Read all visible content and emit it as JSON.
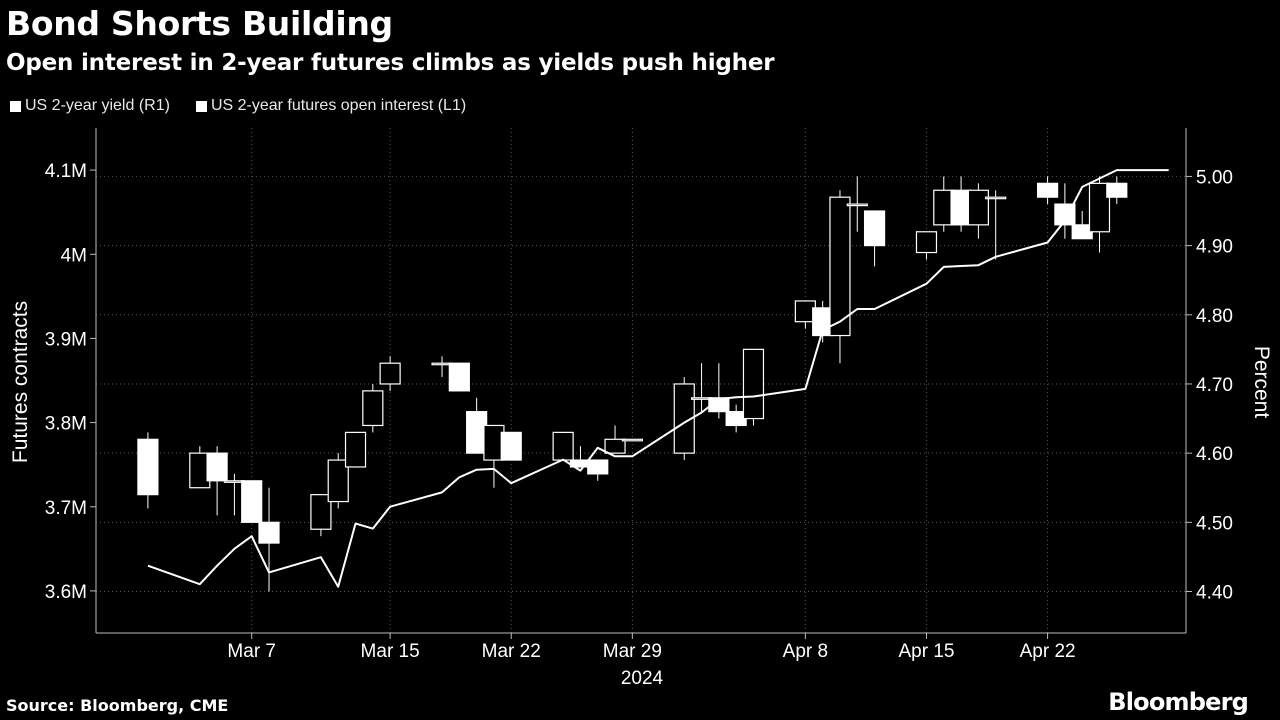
{
  "title": "Bond Shorts Building",
  "subtitle": "Open interest in 2-year futures climbs as yields push higher",
  "source": "Source: Bloomberg, CME",
  "brand": "Bloomberg",
  "colors": {
    "background": "#000000",
    "series": "#ffffff",
    "grid": "#555555"
  },
  "chart_data": {
    "type": "line",
    "legend_position": "top-left",
    "grid": true,
    "legend": [
      {
        "label": "US 2-year yield (R1)",
        "swatch_color": "#ffffff"
      },
      {
        "label": "US 2-year futures open interest (L1)",
        "swatch_color": "#ffffff"
      }
    ],
    "x_tick_labels": [
      "Mar 7",
      "Mar 15",
      "Mar 22",
      "Mar 29",
      "Apr 8",
      "Apr 15",
      "Apr 22"
    ],
    "x_year_label": "2024",
    "left_axis": {
      "label": "Futures contracts",
      "range": [
        3.55,
        4.15
      ],
      "tick_values": [
        3.6,
        3.7,
        3.8,
        3.9,
        4.0,
        4.1
      ],
      "tick_labels": [
        "3.6M",
        "3.7M",
        "3.8M",
        "3.9M",
        "4M",
        "4.1M"
      ]
    },
    "right_axis": {
      "label": "Percent",
      "range": [
        4.34,
        5.07
      ],
      "tick_values": [
        4.4,
        4.5,
        4.6,
        4.7,
        4.8,
        4.9,
        5.0
      ],
      "tick_labels": [
        "4.40",
        "4.50",
        "4.60",
        "4.70",
        "4.80",
        "4.90",
        "5.00"
      ]
    },
    "series": [
      {
        "name": "US 2-year futures open interest (L1)",
        "type": "line",
        "axis": "left",
        "dates": [
          "2024-03-01",
          "2024-03-04",
          "2024-03-05",
          "2024-03-06",
          "2024-03-07",
          "2024-03-08",
          "2024-03-11",
          "2024-03-12",
          "2024-03-13",
          "2024-03-14",
          "2024-03-15",
          "2024-03-18",
          "2024-03-19",
          "2024-03-20",
          "2024-03-21",
          "2024-03-22",
          "2024-03-25",
          "2024-03-26",
          "2024-03-27",
          "2024-03-28",
          "2024-03-29",
          "2024-04-01",
          "2024-04-02",
          "2024-04-03",
          "2024-04-04",
          "2024-04-05",
          "2024-04-08",
          "2024-04-09",
          "2024-04-10",
          "2024-04-11",
          "2024-04-12",
          "2024-04-15",
          "2024-04-16",
          "2024-04-17",
          "2024-04-18",
          "2024-04-19",
          "2024-04-22",
          "2024-04-23",
          "2024-04-24",
          "2024-04-25",
          "2024-04-26",
          "2024-04-29"
        ],
        "values": [
          3.63,
          3.608,
          3.63,
          3.65,
          3.665,
          3.622,
          3.64,
          3.605,
          3.68,
          3.674,
          3.7,
          3.717,
          3.735,
          3.744,
          3.745,
          3.728,
          3.756,
          3.743,
          3.77,
          3.76,
          3.76,
          3.8,
          3.812,
          3.828,
          3.83,
          3.831,
          3.84,
          3.91,
          3.92,
          3.935,
          3.935,
          3.965,
          3.985,
          3.986,
          3.987,
          3.997,
          4.014,
          4.04,
          4.08,
          4.09,
          4.1,
          4.1
        ]
      },
      {
        "name": "US 2-year yield (R1)",
        "type": "candlestick",
        "axis": "right",
        "ohlc": [
          {
            "date": "2024-03-01",
            "open": 4.62,
            "high": 4.63,
            "low": 4.52,
            "close": 4.54
          },
          {
            "date": "2024-03-04",
            "open": 4.55,
            "high": 4.61,
            "low": 4.55,
            "close": 4.6
          },
          {
            "date": "2024-03-05",
            "open": 4.6,
            "high": 4.61,
            "low": 4.51,
            "close": 4.56
          },
          {
            "date": "2024-03-06",
            "open": 4.56,
            "high": 4.57,
            "low": 4.51,
            "close": 4.56
          },
          {
            "date": "2024-03-07",
            "open": 4.56,
            "high": 4.56,
            "low": 4.5,
            "close": 4.5
          },
          {
            "date": "2024-03-08",
            "open": 4.5,
            "high": 4.55,
            "low": 4.4,
            "close": 4.47
          },
          {
            "date": "2024-03-11",
            "open": 4.49,
            "high": 4.54,
            "low": 4.48,
            "close": 4.54
          },
          {
            "date": "2024-03-12",
            "open": 4.53,
            "high": 4.6,
            "low": 4.52,
            "close": 4.59
          },
          {
            "date": "2024-03-13",
            "open": 4.58,
            "high": 4.63,
            "low": 4.58,
            "close": 4.63
          },
          {
            "date": "2024-03-14",
            "open": 4.64,
            "high": 4.7,
            "low": 4.63,
            "close": 4.69
          },
          {
            "date": "2024-03-15",
            "open": 4.7,
            "high": 4.74,
            "low": 4.69,
            "close": 4.73
          },
          {
            "date": "2024-03-18",
            "open": 4.73,
            "high": 4.74,
            "low": 4.71,
            "close": 4.73
          },
          {
            "date": "2024-03-19",
            "open": 4.73,
            "high": 4.73,
            "low": 4.69,
            "close": 4.69
          },
          {
            "date": "2024-03-20",
            "open": 4.66,
            "high": 4.68,
            "low": 4.6,
            "close": 4.6
          },
          {
            "date": "2024-03-21",
            "open": 4.59,
            "high": 4.64,
            "low": 4.55,
            "close": 4.64
          },
          {
            "date": "2024-03-22",
            "open": 4.63,
            "high": 4.63,
            "low": 4.59,
            "close": 4.59
          },
          {
            "date": "2024-03-25",
            "open": 4.59,
            "high": 4.63,
            "low": 4.59,
            "close": 4.63
          },
          {
            "date": "2024-03-26",
            "open": 4.59,
            "high": 4.61,
            "low": 4.58,
            "close": 4.58
          },
          {
            "date": "2024-03-27",
            "open": 4.59,
            "high": 4.59,
            "low": 4.56,
            "close": 4.57
          },
          {
            "date": "2024-03-28",
            "open": 4.6,
            "high": 4.64,
            "low": 4.6,
            "close": 4.62
          },
          {
            "date": "2024-03-29",
            "open": 4.62,
            "high": 4.62,
            "low": 4.62,
            "close": 4.62
          },
          {
            "date": "2024-04-01",
            "open": 4.6,
            "high": 4.71,
            "low": 4.59,
            "close": 4.7
          },
          {
            "date": "2024-04-02",
            "open": 4.68,
            "high": 4.73,
            "low": 4.66,
            "close": 4.68
          },
          {
            "date": "2024-04-03",
            "open": 4.68,
            "high": 4.73,
            "low": 4.65,
            "close": 4.66
          },
          {
            "date": "2024-04-04",
            "open": 4.66,
            "high": 4.67,
            "low": 4.63,
            "close": 4.64
          },
          {
            "date": "2024-04-05",
            "open": 4.65,
            "high": 4.75,
            "low": 4.64,
            "close": 4.75
          },
          {
            "date": "2024-04-08",
            "open": 4.79,
            "high": 4.82,
            "low": 4.78,
            "close": 4.82
          },
          {
            "date": "2024-04-09",
            "open": 4.81,
            "high": 4.82,
            "low": 4.76,
            "close": 4.77
          },
          {
            "date": "2024-04-10",
            "open": 4.77,
            "high": 4.98,
            "low": 4.73,
            "close": 4.97
          },
          {
            "date": "2024-04-11",
            "open": 4.96,
            "high": 5.0,
            "low": 4.92,
            "close": 4.96
          },
          {
            "date": "2024-04-12",
            "open": 4.95,
            "high": 4.95,
            "low": 4.87,
            "close": 4.9
          },
          {
            "date": "2024-04-15",
            "open": 4.89,
            "high": 4.92,
            "low": 4.88,
            "close": 4.92
          },
          {
            "date": "2024-04-16",
            "open": 4.93,
            "high": 5.0,
            "low": 4.92,
            "close": 4.98
          },
          {
            "date": "2024-04-17",
            "open": 4.98,
            "high": 5.0,
            "low": 4.92,
            "close": 4.93
          },
          {
            "date": "2024-04-18",
            "open": 4.93,
            "high": 4.99,
            "low": 4.91,
            "close": 4.98
          },
          {
            "date": "2024-04-19",
            "open": 4.97,
            "high": 4.98,
            "low": 4.88,
            "close": 4.97
          },
          {
            "date": "2024-04-22",
            "open": 4.99,
            "high": 5.0,
            "low": 4.96,
            "close": 4.97
          },
          {
            "date": "2024-04-23",
            "open": 4.96,
            "high": 4.99,
            "low": 4.91,
            "close": 4.93
          },
          {
            "date": "2024-04-24",
            "open": 4.93,
            "high": 4.95,
            "low": 4.91,
            "close": 4.91
          },
          {
            "date": "2024-04-25",
            "open": 4.92,
            "high": 5.0,
            "low": 4.89,
            "close": 4.99
          },
          {
            "date": "2024-04-26",
            "open": 4.99,
            "high": 5.0,
            "low": 4.96,
            "close": 4.97
          }
        ]
      }
    ]
  }
}
